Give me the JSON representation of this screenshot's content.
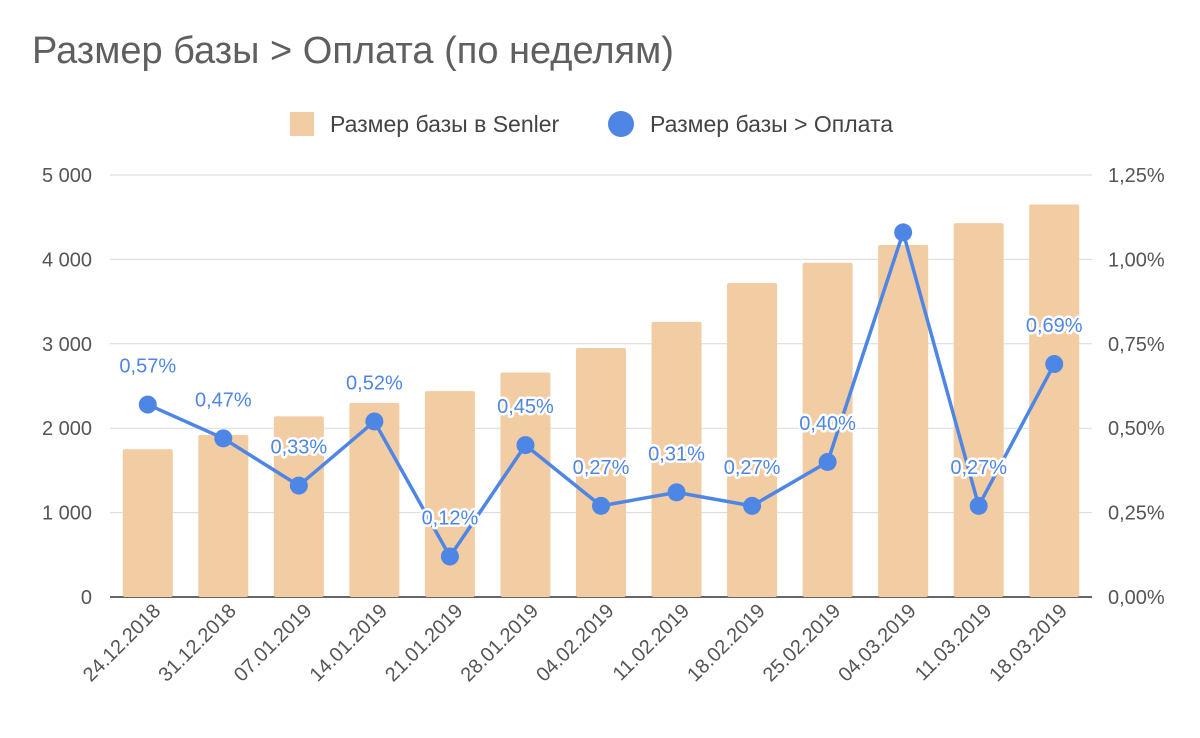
{
  "colors": {
    "bar": "#f2cca2",
    "line": "#4e86e6",
    "grid": "#d9d9d9",
    "axis": "#555555"
  },
  "chart_data": {
    "type": "bar+line",
    "title": "Размер базы > Оплата (по неделям)",
    "legend_position": "top-center",
    "grid": true,
    "categories": [
      "24.12.2018",
      "31.12.2018",
      "07.01.2019",
      "14.01.2019",
      "21.01.2019",
      "28.01.2019",
      "04.02.2019",
      "11.02.2019",
      "18.02.2019",
      "25.02.2019",
      "04.03.2019",
      "11.03.2019",
      "18.03.2019"
    ],
    "series": [
      {
        "name": "Размер базы в Senler",
        "type": "bar",
        "axis": "left",
        "values": [
          1750,
          1920,
          2140,
          2300,
          2440,
          2660,
          2950,
          3260,
          3720,
          3960,
          4170,
          4430,
          4650
        ]
      },
      {
        "name": "Размер базы > Оплата",
        "type": "line",
        "axis": "right",
        "values": [
          0.57,
          0.47,
          0.33,
          0.52,
          0.12,
          0.45,
          0.27,
          0.31,
          0.27,
          0.4,
          1.08,
          0.27,
          0.69
        ],
        "labels": [
          "0,57%",
          "0,47%",
          "0,33%",
          "0,52%",
          "0,12%",
          "0,45%",
          "0,27%",
          "0,31%",
          "0,27%",
          "0,40%",
          "",
          "0,27%",
          "0,69%"
        ]
      }
    ],
    "y_left": {
      "min": 0,
      "max": 5000,
      "ticks": [
        "0",
        "1 000",
        "2 000",
        "3 000",
        "4 000",
        "5 000"
      ]
    },
    "y_right": {
      "min": 0,
      "max": 1.25,
      "ticks": [
        "0,00%",
        "0,25%",
        "0,50%",
        "0,75%",
        "1,00%",
        "1,25%"
      ]
    }
  }
}
